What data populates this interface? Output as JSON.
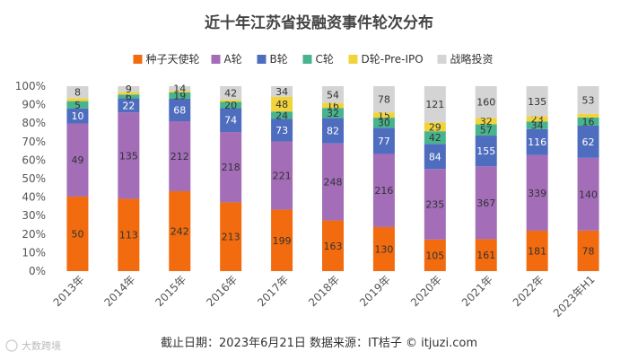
{
  "chart_data": {
    "type": "bar",
    "stacked": "percent",
    "title": "近十年江苏省投融资事件轮次分布",
    "categories": [
      "2013年",
      "2014年",
      "2015年",
      "2016年",
      "2017年",
      "2018年",
      "2019年",
      "2020年",
      "2021年",
      "2022年",
      "2023年H1"
    ],
    "y_ticks": [
      "0%",
      "10%",
      "20%",
      "30%",
      "40%",
      "50%",
      "60%",
      "70%",
      "80%",
      "90%",
      "100%"
    ],
    "ylim": [
      0,
      100
    ],
    "legend_position": "top-center",
    "series": [
      {
        "name": "种子天使轮",
        "color": "#F26B0F",
        "label_color": "#333333",
        "values": [
          50,
          113,
          242,
          213,
          199,
          163,
          130,
          105,
          161,
          181,
          78
        ]
      },
      {
        "name": "A轮",
        "color": "#A36DB8",
        "label_color": "#333333",
        "values": [
          49,
          135,
          212,
          218,
          221,
          248,
          216,
          235,
          367,
          339,
          140
        ]
      },
      {
        "name": "B轮",
        "color": "#4F6DBE",
        "label_color": "#ffffff",
        "values": [
          10,
          22,
          68,
          74,
          73,
          82,
          77,
          84,
          155,
          116,
          62
        ]
      },
      {
        "name": "C轮",
        "color": "#48B48E",
        "label_color": "#333333",
        "values": [
          5,
          6,
          19,
          20,
          24,
          32,
          30,
          42,
          57,
          34,
          16
        ]
      },
      {
        "name": "D轮-Pre-IPO",
        "color": "#F2D43A",
        "label_color": "#333333",
        "values": [
          2,
          4,
          5,
          6,
          48,
          16,
          15,
          29,
          32,
          23,
          7
        ]
      },
      {
        "name": "战略投资",
        "color": "#D4D4D4",
        "label_color": "#333333",
        "values": [
          8,
          9,
          14,
          42,
          34,
          54,
          78,
          121,
          160,
          135,
          53
        ]
      }
    ],
    "hidden_labels": [
      [
        0,
        4
      ],
      [
        1,
        4
      ],
      [
        2,
        4
      ],
      [
        3,
        4
      ],
      [
        10,
        4
      ]
    ]
  },
  "footer": "截止日期：2023年6月21日    数据来源：IT桔子 © itjuzi.com",
  "watermark": "大数跨境"
}
